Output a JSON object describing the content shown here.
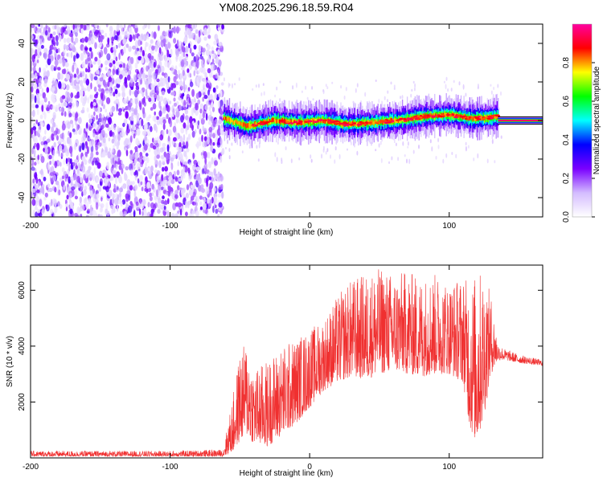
{
  "title": "YM08.2025.296.18.59.R04",
  "chart_data": [
    {
      "type": "heatmap",
      "title": "YM08.2025.296.18.59.R04",
      "xlabel": "Height of straight line (km)",
      "ylabel": "Frequency (Hz)",
      "xlim": [
        -200,
        167
      ],
      "ylim": [
        -50,
        50
      ],
      "xticks": [
        "-200",
        "-100",
        "0",
        "100"
      ],
      "yticks": [
        "-40",
        "-20",
        "0",
        "20",
        "40"
      ],
      "colorbar": {
        "label": "Normalized spectral amplitude",
        "range": [
          0.0,
          1.0
        ],
        "ticks": [
          "0.0",
          "0.2",
          "0.4",
          "0.6",
          "0.8"
        ],
        "colors": [
          "#ffffff",
          "#d4bcff",
          "#7a00ff",
          "#0000ff",
          "#00ffff",
          "#00ff00",
          "#ffff00",
          "#ff0000",
          "#ff00a0"
        ]
      },
      "regions": [
        {
          "name": "noise",
          "x_range": [
            -200,
            -62
          ],
          "freq_range": [
            -50,
            50
          ],
          "amplitude": [
            0.05,
            0.3
          ]
        },
        {
          "name": "signal-band",
          "x_range": [
            -62,
            135
          ],
          "center_freq_hz": [
            1,
            -3,
            0,
            -1,
            0,
            -2,
            -1,
            0,
            2,
            3,
            1,
            2
          ],
          "amplitude": [
            0.3,
            0.95
          ]
        },
        {
          "name": "tail-line",
          "x_range": [
            135,
            167
          ],
          "center_freq_hz": 0,
          "amplitude": [
            0.9,
            1.0
          ]
        }
      ]
    },
    {
      "type": "line",
      "xlabel": "Height of straight line (km)",
      "ylabel": "SNR (10 * v/v)",
      "xlim": [
        -200,
        167
      ],
      "ylim": [
        0,
        6900
      ],
      "xticks": [
        "-200",
        "-100",
        "0",
        "100"
      ],
      "yticks": [
        "2000",
        "4000",
        "6000"
      ],
      "series": [
        {
          "name": "SNR",
          "color": "#f03030",
          "envelope_x": [
            -200,
            -100,
            -62,
            -55,
            -50,
            -45,
            -40,
            -30,
            -20,
            -10,
            0,
            10,
            20,
            30,
            40,
            50,
            60,
            70,
            80,
            90,
            100,
            110,
            115,
            120,
            125,
            130,
            135,
            140,
            150,
            167
          ],
          "envelope_lo": [
            50,
            50,
            50,
            200,
            600,
            800,
            500,
            400,
            800,
            1200,
            1800,
            2400,
            2700,
            2900,
            2800,
            3000,
            3100,
            3000,
            2900,
            3000,
            3000,
            2700,
            1000,
            500,
            1500,
            3000,
            3500,
            3500,
            3400,
            3300
          ],
          "envelope_hi": [
            250,
            250,
            300,
            2200,
            3800,
            4200,
            3200,
            3500,
            4000,
            4300,
            4600,
            5000,
            5800,
            6400,
            6600,
            6800,
            6600,
            6700,
            6500,
            6600,
            6300,
            6500,
            6300,
            6700,
            6700,
            5800,
            4100,
            3900,
            3700,
            3500
          ]
        }
      ]
    }
  ]
}
